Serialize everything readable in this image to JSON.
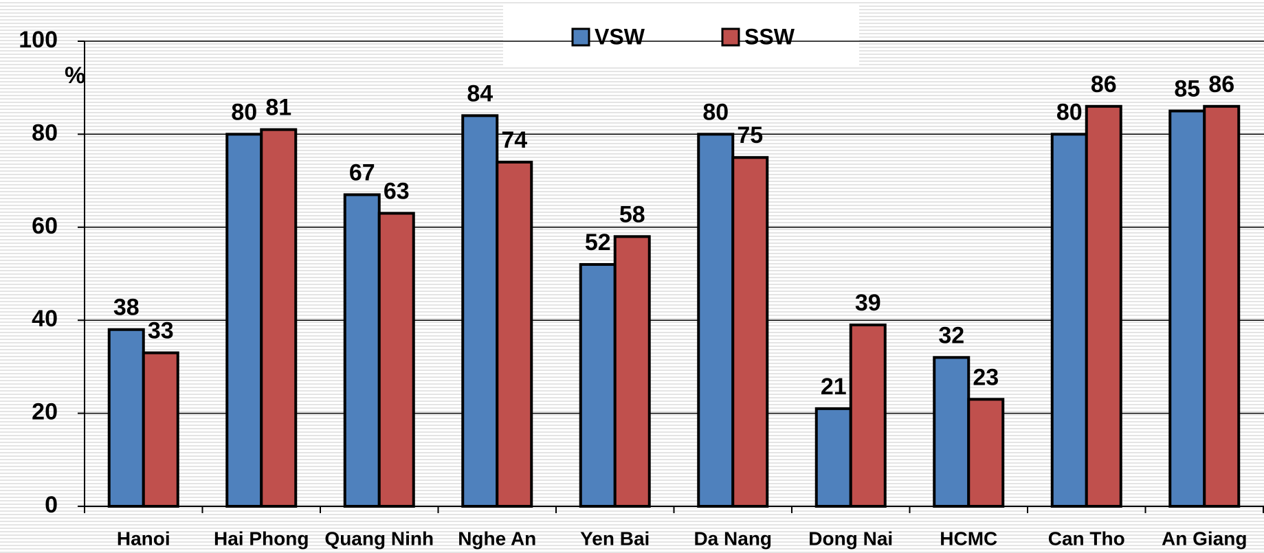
{
  "chart_data": {
    "type": "bar",
    "y_label": "%",
    "categories": [
      "Hanoi",
      "Hai Phong",
      "Quang Ninh",
      "Nghe An",
      "Yen Bai",
      "Da Nang",
      "Dong Nai",
      "HCMC",
      "Can Tho",
      "An Giang"
    ],
    "series": [
      {
        "name": "VSW",
        "color": "#4f81bd",
        "values": [
          38,
          80,
          67,
          84,
          52,
          80,
          21,
          32,
          80,
          85
        ]
      },
      {
        "name": "SSW",
        "color": "#c0504d",
        "values": [
          33,
          81,
          63,
          74,
          58,
          75,
          39,
          23,
          86,
          86
        ]
      }
    ],
    "ylim": [
      0,
      100
    ],
    "yticks": [
      0,
      20,
      40,
      60,
      80,
      100
    ],
    "grid": true,
    "legend": "top"
  }
}
